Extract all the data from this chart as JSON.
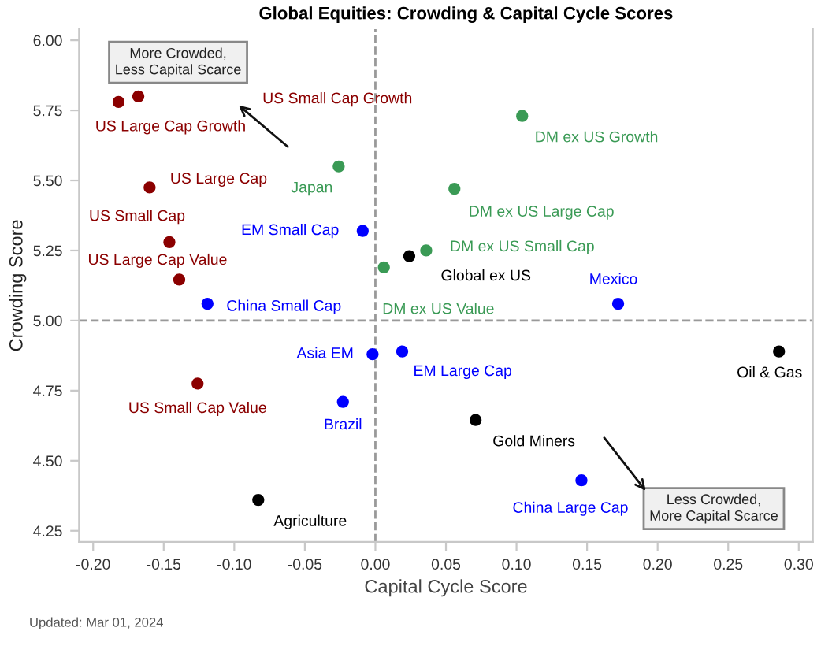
{
  "chart_data": {
    "type": "scatter",
    "title": "Global Equities: Crowding & Capital Cycle Scores",
    "xlabel": "Capital Cycle Score",
    "ylabel": "Crowding Score",
    "xlim": [
      -0.21,
      0.31
    ],
    "xticks": [
      {
        "value": -0.2,
        "label": "-0.20"
      },
      {
        "value": -0.15,
        "label": "-0.15"
      },
      {
        "value": -0.1,
        "label": "-0.10"
      },
      {
        "value": -0.05,
        "label": "-0.05"
      },
      {
        "value": 0,
        "label": "0.00"
      },
      {
        "value": 0.05,
        "label": "0.05"
      },
      {
        "value": 0.1,
        "label": "0.10"
      },
      {
        "value": 0.15,
        "label": "0.15"
      },
      {
        "value": 0.2,
        "label": "0.20"
      },
      {
        "value": 0.25,
        "label": "0.25"
      },
      {
        "value": 0.3,
        "label": "0.30"
      }
    ],
    "ylim": [
      4.21,
      6.04
    ],
    "yticks": [
      {
        "value": 4.25,
        "label": "4.25"
      },
      {
        "value": 4.5,
        "label": "4.50"
      },
      {
        "value": 4.75,
        "label": "4.75"
      },
      {
        "value": 5,
        "label": "5.00"
      },
      {
        "value": 5.25,
        "label": "5.25"
      },
      {
        "value": 5.5,
        "label": "5.50"
      },
      {
        "value": 5.75,
        "label": "5.75"
      },
      {
        "value": 6,
        "label": "6.00"
      }
    ],
    "grid": false,
    "marker": "circle",
    "series": [
      {
        "x": [
          -0.182,
          -0.168,
          -0.16,
          -0.146,
          -0.139,
          -0.119,
          -0.026,
          -0.009,
          0.006,
          0.024,
          0.036,
          0.056,
          0.104,
          0.172,
          -0.002,
          0.019,
          -0.126,
          -0.023,
          -0.083,
          0.286,
          0.071,
          0.146
        ],
        "values": [
          5.78,
          5.8,
          5.475,
          5.28,
          5.146,
          5.06,
          5.55,
          5.32,
          5.19,
          5.23,
          5.25,
          5.47,
          5.73,
          5.06,
          4.88,
          4.89,
          4.775,
          4.71,
          4.36,
          4.89,
          4.645,
          4.43
        ],
        "colors": [
          "#8b0000",
          "#8b0000",
          "#8b0000",
          "#8b0000",
          "#8b0000",
          "#0000ff",
          "#3a9a55",
          "#0000ff",
          "#3a9a55",
          "#000000",
          "#3a9a55",
          "#3a9a55",
          "#3a9a55",
          "#0000ff",
          "#0000ff",
          "#0000ff",
          "#8b0000",
          "#0000ff",
          "#000000",
          "#000000",
          "#000000",
          "#0000ff"
        ]
      }
    ],
    "ref_lines": [
      {
        "axis": "x",
        "value": 0,
        "color": "#999999",
        "line_style": "dashed"
      },
      {
        "axis": "y",
        "value": 5,
        "color": "#999999",
        "line_style": "dashed"
      }
    ],
    "annotations": [
      {
        "text": "US Large Cap Growth",
        "x": -0.182,
        "y": 5.78
      },
      "US Small Cap Growth",
      {
        "text": "US Large Cap",
        "x": -0.16,
        "y": 5.475
      },
      {
        "text": "US Small Cap",
        "x": -0.146,
        "y": 5.28
      },
      {
        "text": "US Large Cap Value",
        "x": -0.139,
        "y": 5.146
      },
      {
        "text": "China Small Cap",
        "x": -0.119,
        "y": 5.06
      },
      {
        "text": "Japan",
        "x": -0.026,
        "y": 5.55
      },
      {
        "text": "EM Small Cap",
        "x": -0.009,
        "y": 5.32
      },
      {
        "text": "DM ex US Value",
        "x": 0.006,
        "y": 5.19
      },
      {
        "text": "Global ex US",
        "x": 0.024,
        "y": 5.23
      },
      {
        "text": "DM ex US Small Cap",
        "x": 0.036,
        "y": 5.25
      },
      {
        "text": "DM ex US Large Cap",
        "x": 0.056,
        "y": 5.47
      },
      {
        "text": "DM ex US Growth",
        "x": 0.104,
        "y": 5.73
      },
      {
        "text": "Mexico",
        "x": 0.172,
        "y": 5.06
      },
      {
        "text": "Asia EM",
        "x": -0.002,
        "y": 4.88
      },
      {
        "text": "EM Large Cap",
        "x": 0.019,
        "y": 4.89
      },
      {
        "text": "US Small Cap Value",
        "x": -0.126,
        "y": 4.775
      },
      {
        "text": "Brazil",
        "x": -0.023,
        "y": 4.71
      },
      {
        "text": "Agriculture",
        "x": -0.083,
        "y": 4.36
      },
      {
        "text": "Oil & Gas",
        "x": 0.286,
        "y": 4.89
      },
      {
        "text": "Gold Miners",
        "x": 0.071,
        "y": 4.645
      },
      {
        "text": "China Large Cap",
        "x": 0.146,
        "y": 4.43
      },
      "More Crowded,\nLess Capital Scarce",
      "Less Crowded,\nMore Capital Scarce",
      "Updated: Mar 01, 2024"
    ]
  }
}
